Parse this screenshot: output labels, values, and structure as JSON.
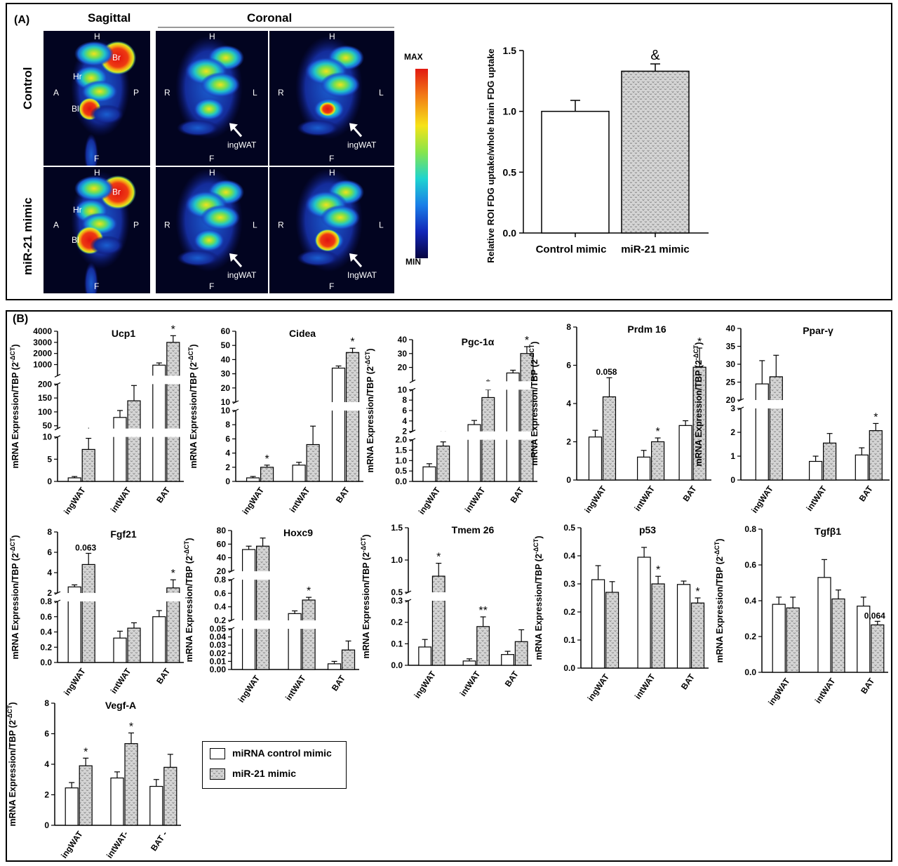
{
  "panelA": {
    "label": "(A)",
    "sagittal_title": "Sagittal",
    "coronal_title": "Coronal",
    "rows": [
      "Control",
      "miR-21 mimic"
    ],
    "orient": {
      "H": "H",
      "F": "F",
      "A": "A",
      "P": "P",
      "R": "R",
      "L": "L"
    },
    "organs": {
      "br": "Br",
      "hr": "Hr",
      "bl": "Bl"
    },
    "ingwat_labels": [
      "ingWAT",
      "ingWAT",
      "ingWAT",
      "IngWAT"
    ],
    "colorbar": {
      "max": "MAX",
      "min": "MIN"
    }
  },
  "panelB": {
    "label": "(B)"
  },
  "legend": {
    "control": "miRNA control mimic",
    "mimic": "miR-21 mimic"
  },
  "colors": {
    "control_fill": "#ffffff",
    "mimic_fill": "#d4d4d4",
    "pattern_stroke": "#8a8a8a"
  },
  "chart_data": [
    {
      "id": "fdg",
      "type": "bar",
      "title": "",
      "categories": [
        "Control mimic",
        "miR-21 mimic"
      ],
      "series": [
        {
          "values": [
            1.0,
            1.33
          ],
          "errors": [
            0.09,
            0.06
          ]
        }
      ],
      "ylabel": "Relative  ROI FDG uptake/whole  brain FDG uptake",
      "ylim": [
        0,
        1.5
      ],
      "yticks": [
        "0.0",
        "0.5",
        "1.0",
        "1.5"
      ],
      "annotations": [
        "",
        "&"
      ]
    },
    {
      "id": "ucp1",
      "type": "bar",
      "title": "Ucp1",
      "categories": [
        "ingWAT",
        "intWAT",
        "BAT"
      ],
      "ylabel": "mRNA Expression/TBP (2",
      "series": [
        {
          "name": "miRNA control mimic",
          "values": [
            0.8,
            80,
            950
          ],
          "errors": [
            0.3,
            25,
            200
          ]
        },
        {
          "name": "miR-21 mimic",
          "values": [
            7.2,
            140,
            3000
          ],
          "errors": [
            2.5,
            55,
            600
          ]
        }
      ],
      "segments": [
        [
          0,
          10
        ],
        [
          40,
          200
        ],
        [
          0,
          4000
        ]
      ],
      "yticks": [
        "0",
        "5",
        "10",
        "50",
        "100",
        "150",
        "200",
        "1000",
        "2000",
        "3000",
        "4000"
      ],
      "annotations": [
        "*",
        "",
        "*"
      ]
    },
    {
      "id": "cidea",
      "type": "bar",
      "title": "Cidea",
      "categories": [
        "ingWAT",
        "intWAT",
        "BAT"
      ],
      "ylabel": "mRNA Expression/TBP (2",
      "series": [
        {
          "name": "miRNA control mimic",
          "values": [
            0.5,
            2.3,
            34
          ],
          "errors": [
            0.2,
            0.4,
            1.5
          ]
        },
        {
          "name": "miR-21 mimic",
          "values": [
            2.0,
            5.2,
            45
          ],
          "errors": [
            0.3,
            2.6,
            3
          ]
        }
      ],
      "segments": [
        [
          0,
          10
        ],
        [
          10,
          60
        ]
      ],
      "yticks": [
        "0",
        "2",
        "4",
        "6",
        "8",
        "10",
        "10",
        "20",
        "30",
        "40",
        "50",
        "60"
      ],
      "annotations": [
        "*",
        "",
        "*"
      ]
    },
    {
      "id": "pgc1a",
      "type": "bar",
      "title": "Pgc-1α",
      "categories": [
        "ingWAT",
        "intWAT",
        "BAT"
      ],
      "ylabel": "mRNA Expression/TBP (2",
      "series": [
        {
          "name": "miRNA control mimic",
          "values": [
            0.7,
            3.3,
            16
          ],
          "errors": [
            0.15,
            0.8,
            2
          ]
        },
        {
          "name": "miR-21 mimic",
          "values": [
            1.7,
            8.5,
            30
          ],
          "errors": [
            0.2,
            1.5,
            5
          ]
        }
      ],
      "segments": [
        [
          0,
          2
        ],
        [
          2,
          10
        ],
        [
          10,
          40
        ]
      ],
      "yticks": [
        "0.0",
        "0.5",
        "1.0",
        "1.5",
        "2.0",
        "2",
        "4",
        "6",
        "8",
        "10",
        "20",
        "30",
        "40"
      ],
      "annotations": [
        "**",
        "*",
        "*"
      ]
    },
    {
      "id": "prdm16",
      "type": "bar",
      "title": "Prdm 16",
      "categories": [
        "ingWAT",
        "intWAT",
        "BAT"
      ],
      "ylabel": "mRNA Expression/TBP (2",
      "series": [
        {
          "name": "miRNA control mimic",
          "values": [
            2.25,
            1.2,
            2.85
          ],
          "errors": [
            0.35,
            0.35,
            0.25
          ]
        },
        {
          "name": "miR-21 mimic",
          "values": [
            4.35,
            2.0,
            5.9
          ],
          "errors": [
            1.0,
            0.2,
            1.0
          ]
        }
      ],
      "ylim": [
        0,
        8
      ],
      "yticks": [
        "0",
        "2",
        "4",
        "6",
        "8"
      ],
      "annotations": [
        "0.058",
        "*",
        "*"
      ]
    },
    {
      "id": "pparg",
      "type": "bar",
      "title": "Ppar-γ",
      "categories": [
        "ingWAT",
        "intWAT",
        "BAT"
      ],
      "ylabel": "mRNA Expression/TBP (2",
      "series": [
        {
          "name": "miRNA control mimic",
          "values": [
            24.5,
            0.78,
            1.05
          ],
          "errors": [
            6.5,
            0.22,
            0.3
          ]
        },
        {
          "name": "miR-21 mimic",
          "values": [
            26.5,
            1.55,
            2.07
          ],
          "errors": [
            6,
            0.4,
            0.3
          ]
        }
      ],
      "segments": [
        [
          0,
          3
        ],
        [
          20,
          40
        ]
      ],
      "yticks": [
        "0",
        "1",
        "2",
        "3",
        "20",
        "25",
        "30",
        "35",
        "40"
      ],
      "annotations": [
        "",
        "",
        "*"
      ]
    },
    {
      "id": "fgf21",
      "type": "bar",
      "title": "Fgf21",
      "categories": [
        "ingWAT",
        "intWAT",
        "BAT"
      ],
      "ylabel": "mRNA Expression/TBP (2",
      "series": [
        {
          "name": "miRNA control mimic",
          "values": [
            2.6,
            0.32,
            0.6
          ],
          "errors": [
            0.2,
            0.09,
            0.08
          ]
        },
        {
          "name": "miR-21 mimic",
          "values": [
            4.8,
            0.45,
            2.5
          ],
          "errors": [
            1.1,
            0.07,
            0.8
          ]
        }
      ],
      "segments": [
        [
          0,
          0.8
        ],
        [
          2,
          8
        ]
      ],
      "yticks": [
        "0.0",
        "0.2",
        "0.4",
        "0.6",
        "0.8",
        "2",
        "4",
        "6",
        "8"
      ],
      "annotations": [
        "0.063",
        "",
        "*"
      ]
    },
    {
      "id": "hoxc9",
      "type": "bar",
      "title": "Hoxc9",
      "categories": [
        "ingWAT",
        "intWAT",
        "BAT"
      ],
      "ylabel": "mRNA Expression/TBP (2",
      "series": [
        {
          "name": "miRNA control mimic",
          "values": [
            52,
            0.3,
            0.007
          ],
          "errors": [
            5,
            0.04,
            0.003
          ]
        },
        {
          "name": "miR-21 mimic",
          "values": [
            57,
            0.5,
            0.024
          ],
          "errors": [
            12,
            0.04,
            0.011
          ]
        }
      ],
      "segments": [
        [
          0,
          0.05
        ],
        [
          0.2,
          0.8
        ],
        [
          20,
          80
        ]
      ],
      "yticks": [
        "0.00",
        "0.01",
        "0.02",
        "0.03",
        "0.04",
        "0.05",
        "0.2",
        "0.4",
        "0.6",
        "0.8",
        "20",
        "40",
        "60",
        "80"
      ],
      "annotations": [
        "",
        "*",
        ""
      ]
    },
    {
      "id": "tmem26",
      "type": "bar",
      "title": "Tmem 26",
      "categories": [
        "ingWAT",
        "intWAT",
        "BAT"
      ],
      "ylabel": "mRNA Expression/TBP (2",
      "series": [
        {
          "name": "miRNA control mimic",
          "values": [
            0.085,
            0.02,
            0.05
          ],
          "errors": [
            0.035,
            0.01,
            0.015
          ]
        },
        {
          "name": "miR-21 mimic",
          "values": [
            0.75,
            0.18,
            0.11
          ],
          "errors": [
            0.2,
            0.045,
            0.055
          ]
        }
      ],
      "segments": [
        [
          0,
          0.3
        ],
        [
          0.5,
          1.5
        ]
      ],
      "yticks": [
        "0.0",
        "0.1",
        "0.2",
        "0.3",
        "0.5",
        "1.0",
        "1.5"
      ],
      "annotations": [
        "*",
        "**",
        ""
      ]
    },
    {
      "id": "p53",
      "type": "bar",
      "title": "p53",
      "categories": [
        "ingWAT",
        "intWAT",
        "BAT"
      ],
      "ylabel": "mRNA Expression/TBP (2",
      "series": [
        {
          "name": "miRNA control mimic",
          "values": [
            0.315,
            0.395,
            0.298
          ],
          "errors": [
            0.05,
            0.035,
            0.012
          ]
        },
        {
          "name": "miR-21 mimic",
          "values": [
            0.27,
            0.3,
            0.232
          ],
          "errors": [
            0.038,
            0.027,
            0.018
          ]
        }
      ],
      "ylim": [
        0,
        0.5
      ],
      "yticks": [
        "0.0",
        "0.1",
        "0.2",
        "0.3",
        "0.4",
        "0.5"
      ],
      "annotations": [
        "",
        "*",
        "*"
      ]
    },
    {
      "id": "tgfb1",
      "type": "bar",
      "title": "Tgfβ1",
      "categories": [
        "ingWAT",
        "intWAT",
        "BAT"
      ],
      "ylabel": "mRNA Expression/TBP (2",
      "series": [
        {
          "name": "miRNA control mimic",
          "values": [
            0.38,
            0.53,
            0.37
          ],
          "errors": [
            0.04,
            0.1,
            0.05
          ]
        },
        {
          "name": "miR-21 mimic",
          "values": [
            0.36,
            0.41,
            0.265
          ],
          "errors": [
            0.06,
            0.05,
            0.02
          ]
        }
      ],
      "ylim": [
        0,
        0.8
      ],
      "yticks": [
        "0.0",
        "0.2",
        "0.4",
        "0.6",
        "0.8"
      ],
      "annotations": [
        "",
        "",
        "0,064"
      ]
    },
    {
      "id": "vegfa",
      "type": "bar",
      "title": "Vegf-A",
      "categories": [
        "ingWAT",
        "intWAT-",
        "BAT -"
      ],
      "ylabel": "mRNA Expression/TBP (2",
      "series": [
        {
          "name": "miRNA control mimic",
          "values": [
            2.45,
            3.1,
            2.55
          ],
          "errors": [
            0.35,
            0.4,
            0.45
          ]
        },
        {
          "name": "miR-21 mimic",
          "values": [
            3.9,
            5.35,
            3.8
          ],
          "errors": [
            0.5,
            0.7,
            0.85
          ]
        }
      ],
      "ylim": [
        0,
        8
      ],
      "yticks": [
        "0",
        "2",
        "4",
        "6",
        "8"
      ],
      "annotations": [
        "*",
        "*",
        ""
      ]
    }
  ]
}
